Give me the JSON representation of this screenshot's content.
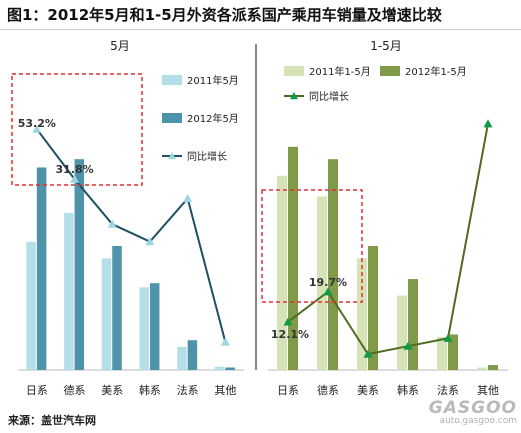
{
  "figure": {
    "title": "图1：2012年5月和1-5月外资各派系国产乘用车销量及增速比较",
    "source": "来源：盖世汽车网",
    "watermark_logo": "GASGOO",
    "watermark_url": "auto.gasgoo.com"
  },
  "chart_data": [
    {
      "type": "bar",
      "title": "5月",
      "categories": [
        "日系",
        "德系",
        "美系",
        "韩系",
        "法系",
        "其他"
      ],
      "series": [
        {
          "name": "2011年5月",
          "type": "bar",
          "color": "#b5dfe8",
          "values": [
            155,
            190,
            135,
            100,
            28,
            4
          ]
        },
        {
          "name": "2012年5月",
          "type": "bar",
          "color": "#4d94ab",
          "values": [
            245,
            255,
            150,
            105,
            36,
            3
          ]
        },
        {
          "name": "同比增长",
          "type": "line",
          "color": "#1e4f63",
          "marker": "triangle",
          "marker_color": "#9dd4e1",
          "unit": "%",
          "values": [
            53.2,
            31.8,
            12.5,
            5.0,
            23.5,
            -38.0
          ],
          "labels": [
            "53.2%",
            "31.8%",
            "",
            "",
            "",
            ""
          ]
        }
      ],
      "ylim": [
        0,
        300
      ],
      "y2lim": [
        -50,
        70
      ],
      "legend": "right",
      "highlight": "日系-德系 dashed red box"
    },
    {
      "type": "bar",
      "title": "1-5月",
      "categories": [
        "日系",
        "德系",
        "美系",
        "韩系",
        "法系",
        "其他"
      ],
      "series": [
        {
          "name": "2011年1-5月",
          "type": "bar",
          "color": "#d6e3b7",
          "values": [
            235,
            210,
            135,
            90,
            40,
            3
          ]
        },
        {
          "name": "2012年1-5月",
          "type": "bar",
          "color": "#7f9b4a",
          "values": [
            270,
            255,
            150,
            110,
            43,
            6
          ]
        },
        {
          "name": "同比增长",
          "type": "line",
          "color": "#4f6b22",
          "marker": "triangle",
          "marker_color": "#0f9a4a",
          "unit": "%",
          "values": [
            12.1,
            19.7,
            4.0,
            6.0,
            8.0,
            62.0
          ],
          "labels": [
            "12.1%",
            "19.7%",
            "",
            "",
            "",
            ""
          ]
        }
      ],
      "ylim": [
        0,
        300
      ],
      "y2lim": [
        0,
        70
      ],
      "legend": "top",
      "highlight": "日系-德系 dashed red box"
    }
  ]
}
